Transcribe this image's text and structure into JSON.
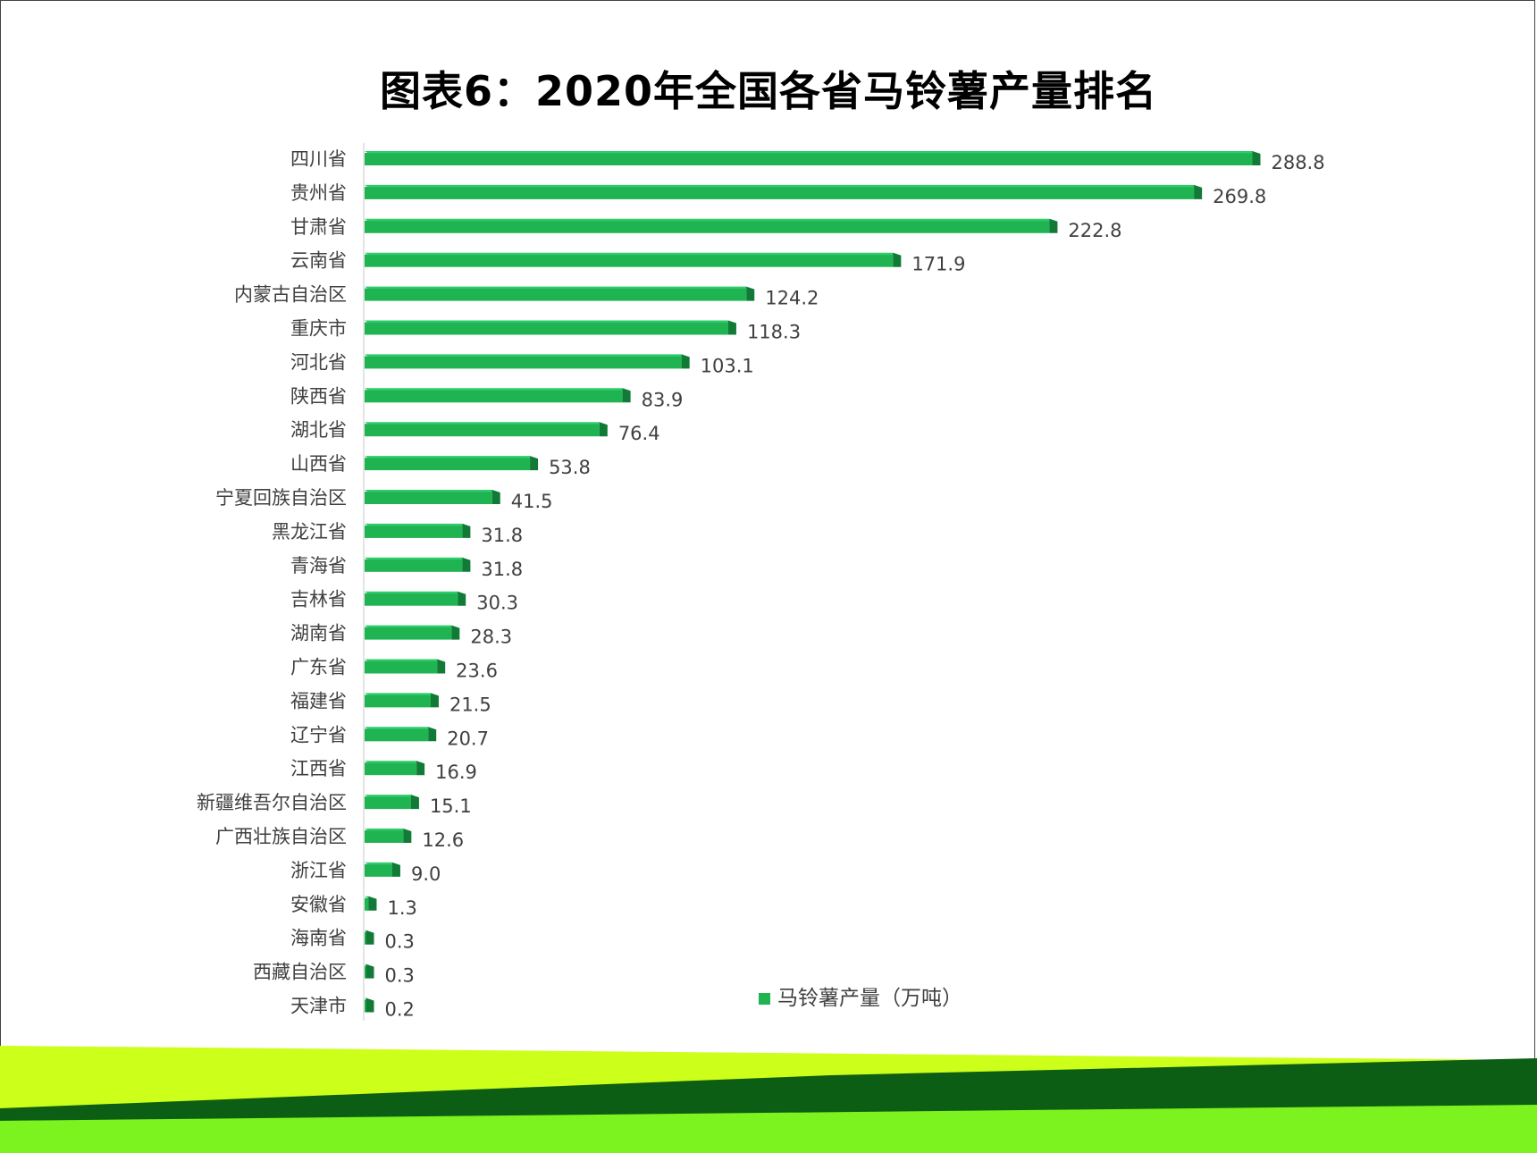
{
  "title": "图表6：2020年全国各省马铃薯产量排名",
  "colors": {
    "bar_top": "#2ecc6a",
    "bar_face": "#20b352",
    "bar_end": "#127a37",
    "axis": "#c8c8c8",
    "footer_yellow": "#ccff1a",
    "footer_dark_green": "#0b5e14",
    "footer_bright_green": "#7cf21e"
  },
  "chart_data": {
    "type": "bar",
    "orientation": "horizontal",
    "title": "图表6：2020年全国各省马铃薯产量排名",
    "categories": [
      "四川省",
      "贵州省",
      "甘肃省",
      "云南省",
      "内蒙古自治区",
      "重庆市",
      "河北省",
      "陕西省",
      "湖北省",
      "山西省",
      "宁夏回族自治区",
      "黑龙江省",
      "青海省",
      "吉林省",
      "湖南省",
      "广东省",
      "福建省",
      "辽宁省",
      "江西省",
      "新疆维吾尔自治区",
      "广西壮族自治区",
      "浙江省",
      "安徽省",
      "海南省",
      "西藏自治区",
      "天津市"
    ],
    "series": [
      {
        "name": "马铃薯产量（万吨）",
        "values": [
          288.8,
          269.8,
          222.8,
          171.9,
          124.2,
          118.3,
          103.1,
          83.9,
          76.4,
          53.8,
          41.5,
          31.8,
          31.8,
          30.3,
          28.3,
          23.6,
          21.5,
          20.7,
          16.9,
          15.1,
          12.6,
          9.0,
          1.3,
          0.3,
          0.3,
          0.2
        ],
        "labels": [
          "288.8",
          "269.8",
          "222.8",
          "171.9",
          "124.2",
          "118.3",
          "103.1",
          "83.9",
          "76.4",
          "53.8",
          "41.5",
          "31.8",
          "31.8",
          "30.3",
          "28.3",
          "23.6",
          "21.5",
          "20.7",
          "16.9",
          "15.1",
          "12.6",
          "9.0",
          "1.3",
          "0.3",
          "0.3",
          "0.2"
        ]
      }
    ],
    "xlim": [
      0,
      300
    ],
    "grid": false,
    "legend_position": "bottom-right"
  }
}
